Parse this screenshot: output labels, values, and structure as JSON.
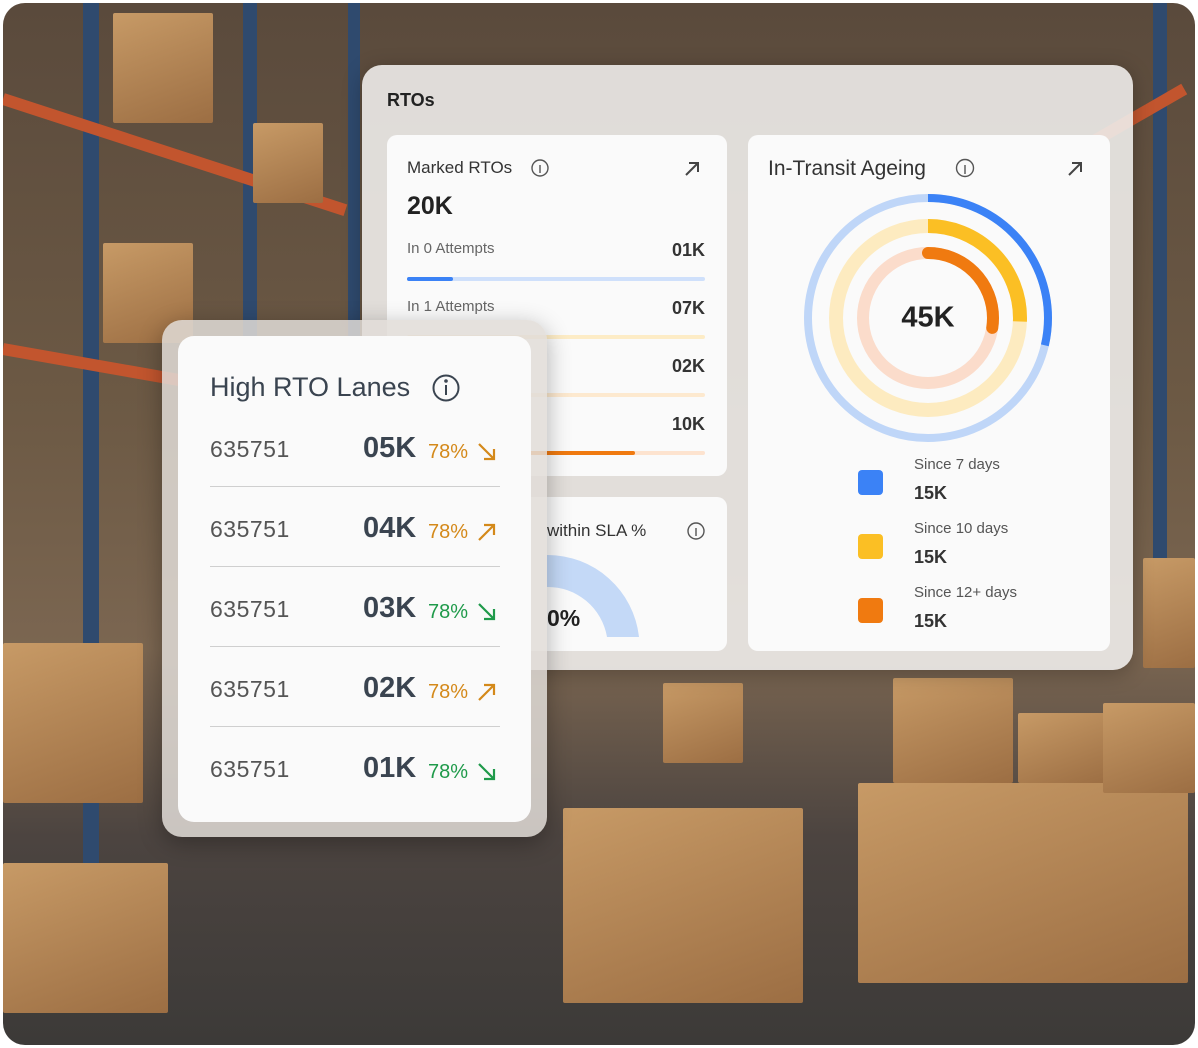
{
  "panel": {
    "title": "RTOs",
    "marked_rtos": {
      "title": "Marked RTOs",
      "total": "20K",
      "rows": [
        {
          "label": "In 0 Attempts",
          "value": "01K"
        },
        {
          "label": "In 1 Attempts",
          "value": "07K"
        },
        {
          "value": "02K"
        },
        {
          "value": "10K"
        }
      ]
    },
    "sla": {
      "title": "within SLA %",
      "value": "0%"
    },
    "ageing": {
      "title": "In-Transit Ageing",
      "total": "45K",
      "legend": [
        {
          "label": "Since 7 days",
          "value": "15K",
          "color": "#3b82f6"
        },
        {
          "label": "Since 10 days",
          "value": "15K",
          "color": "#fbbf24"
        },
        {
          "label": "Since 12+ days",
          "value": "15K",
          "color": "#f07a10"
        }
      ]
    }
  },
  "lanes": {
    "title": "High RTO Lanes",
    "rows": [
      {
        "lane": "635751",
        "count": "05K",
        "percent": "78%",
        "trend": "down",
        "color": "#d4891a"
      },
      {
        "lane": "635751",
        "count": "04K",
        "percent": "78%",
        "trend": "up",
        "color": "#d4891a"
      },
      {
        "lane": "635751",
        "count": "03K",
        "percent": "78%",
        "trend": "down",
        "color": "#1f9a4a"
      },
      {
        "lane": "635751",
        "count": "02K",
        "percent": "78%",
        "trend": "up",
        "color": "#d4891a"
      },
      {
        "lane": "635751",
        "count": "01K",
        "percent": "78%",
        "trend": "down",
        "color": "#1f9a4a"
      }
    ]
  }
}
